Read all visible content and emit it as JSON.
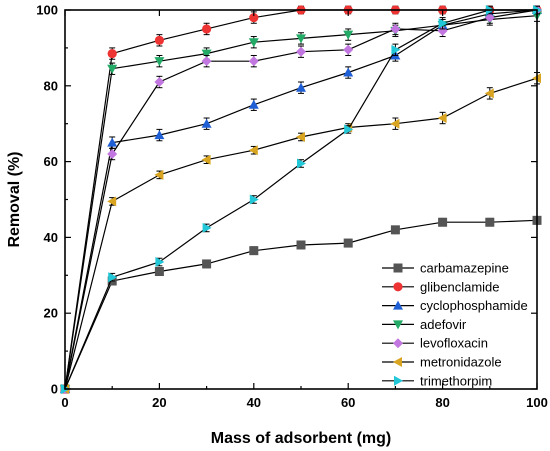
{
  "chart_data": {
    "type": "line",
    "title": "",
    "xlabel": "Mass of adsorbent (mg)",
    "ylabel": "Removal (%)",
    "xlim": [
      0,
      100
    ],
    "ylim": [
      0,
      100
    ],
    "x_ticks": [
      0,
      20,
      40,
      60,
      80,
      100
    ],
    "y_ticks": [
      0,
      20,
      40,
      60,
      80,
      100
    ],
    "x": [
      0,
      10,
      20,
      30,
      40,
      50,
      60,
      70,
      80,
      90,
      100
    ],
    "legend_position": "bottom-right",
    "series": [
      {
        "name": "carbamazepine",
        "marker": "square",
        "color": "#555555",
        "values": [
          0,
          28.5,
          31,
          33,
          36.5,
          38,
          38.5,
          42,
          44,
          44,
          44.5
        ],
        "errors": [
          0,
          1,
          1,
          1,
          1,
          1,
          1,
          1,
          1,
          1,
          1
        ]
      },
      {
        "name": "glibenclamide",
        "marker": "circle",
        "color": "#ee3333",
        "values": [
          0,
          88.5,
          92,
          95,
          98,
          100,
          100,
          100,
          100,
          100,
          100
        ],
        "errors": [
          0,
          1.5,
          1.5,
          1.5,
          1.5,
          1,
          1,
          1,
          1,
          1,
          1
        ]
      },
      {
        "name": "cyclophosphamide",
        "marker": "triangle-up",
        "color": "#1f5fd6",
        "values": [
          0,
          65,
          67,
          70,
          75,
          79.5,
          83.5,
          88,
          96,
          99,
          100
        ],
        "errors": [
          0,
          1.5,
          1.5,
          1.5,
          1.5,
          1.5,
          1.5,
          1.5,
          1.5,
          1.5,
          1
        ]
      },
      {
        "name": "adefovir",
        "marker": "triangle-down",
        "color": "#22aa66",
        "values": [
          0,
          84.5,
          86.5,
          88.5,
          91.5,
          92.5,
          93.5,
          94.5,
          96,
          97.5,
          98.5
        ],
        "errors": [
          0,
          1.5,
          1.5,
          1.5,
          1.5,
          1.5,
          1.5,
          1.5,
          1.5,
          1.5,
          1.5
        ]
      },
      {
        "name": "levofloxacin",
        "marker": "diamond",
        "color": "#c277e0",
        "values": [
          0,
          62,
          81,
          86.5,
          86.5,
          89,
          89.5,
          95,
          94.5,
          98,
          100
        ],
        "errors": [
          0,
          1.5,
          1.5,
          1.5,
          1.5,
          1.5,
          1.5,
          1.5,
          1.5,
          1.5,
          1
        ]
      },
      {
        "name": "metronidazole",
        "marker": "triangle-left",
        "color": "#d9a520",
        "values": [
          0,
          49.5,
          56.5,
          60.5,
          63,
          66.5,
          69,
          70,
          71.5,
          78,
          82
        ],
        "errors": [
          0,
          1,
          1,
          1,
          1,
          1,
          1,
          1.5,
          1.5,
          1.5,
          1.5
        ]
      },
      {
        "name": "trimethorpim",
        "marker": "triangle-right",
        "color": "#22c8d8",
        "values": [
          0,
          29.5,
          33.5,
          42.5,
          50,
          59.5,
          68.5,
          89.5,
          96.5,
          100,
          100
        ],
        "errors": [
          0,
          1,
          1,
          1,
          1,
          1,
          1,
          1.5,
          1.5,
          1,
          1
        ]
      }
    ]
  }
}
